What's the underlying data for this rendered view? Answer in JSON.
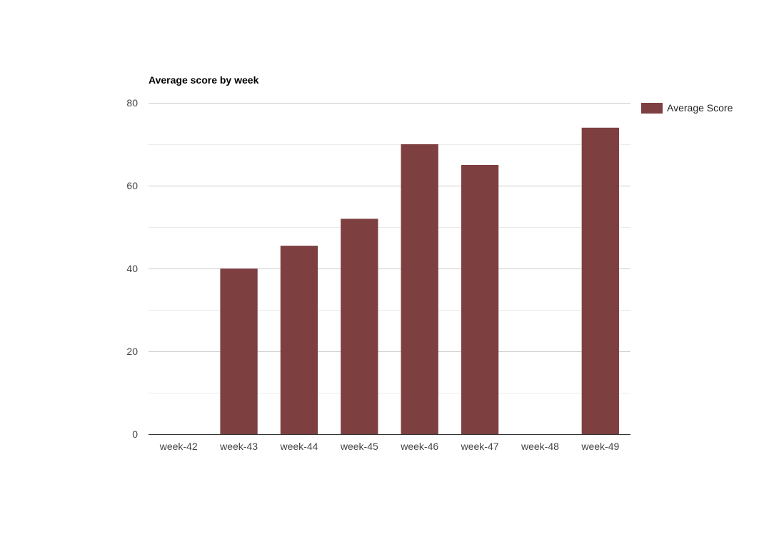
{
  "chart_data": {
    "type": "bar",
    "title": "Average score by week",
    "xlabel": "",
    "ylabel": "",
    "categories": [
      "week-42",
      "week-43",
      "week-44",
      "week-45",
      "week-46",
      "week-47",
      "week-48",
      "week-49"
    ],
    "series": [
      {
        "name": "Average Score",
        "values": [
          0,
          40,
          45.5,
          52,
          70,
          65,
          0,
          74
        ],
        "color": "#7e3f41"
      }
    ],
    "ylim": [
      0,
      80
    ],
    "yticks": [
      0,
      20,
      40,
      60,
      80
    ],
    "y_tick_labels": [
      "0",
      "20",
      "40",
      "60",
      "80"
    ],
    "grid": true,
    "minor_grid": true,
    "legend_position": "right",
    "colors": {
      "bar": "#7e3f41",
      "major_grid": "#cccccc",
      "minor_grid": "#ebebeb",
      "axis": "#333333"
    }
  }
}
